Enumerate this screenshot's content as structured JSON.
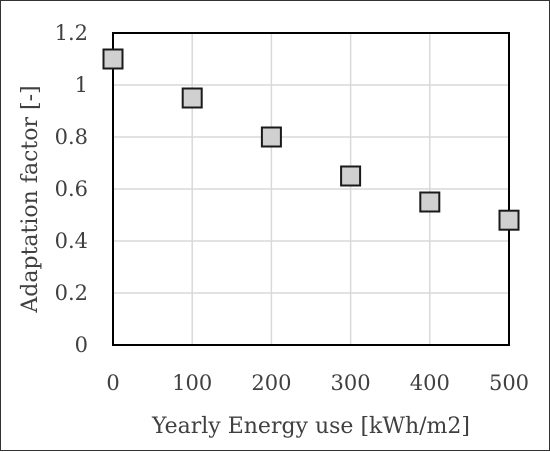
{
  "chart_data": {
    "type": "scatter",
    "title": "",
    "xlabel": "Yearly Energy use [kWh/m2]",
    "ylabel": "Adaptation factor [-]",
    "xlim": [
      0,
      500
    ],
    "ylim": [
      0,
      1.2
    ],
    "xticks": [
      "0",
      "100",
      "200",
      "300",
      "400",
      "500"
    ],
    "yticks": [
      "0",
      "0.2",
      "0.4",
      "0.6",
      "0.8",
      "1",
      "1.2"
    ],
    "grid": true,
    "legend": "none",
    "marker": "square",
    "colors": {
      "marker_fill": "#d0d0d0",
      "marker_stroke": "#1a1a1a",
      "grid": "#d9d9d9",
      "axis": "#000000"
    },
    "series": [
      {
        "x": [
          0,
          100,
          200,
          300,
          400,
          500
        ],
        "y": [
          1.1,
          0.95,
          0.8,
          0.65,
          0.55,
          0.48
        ]
      }
    ]
  }
}
